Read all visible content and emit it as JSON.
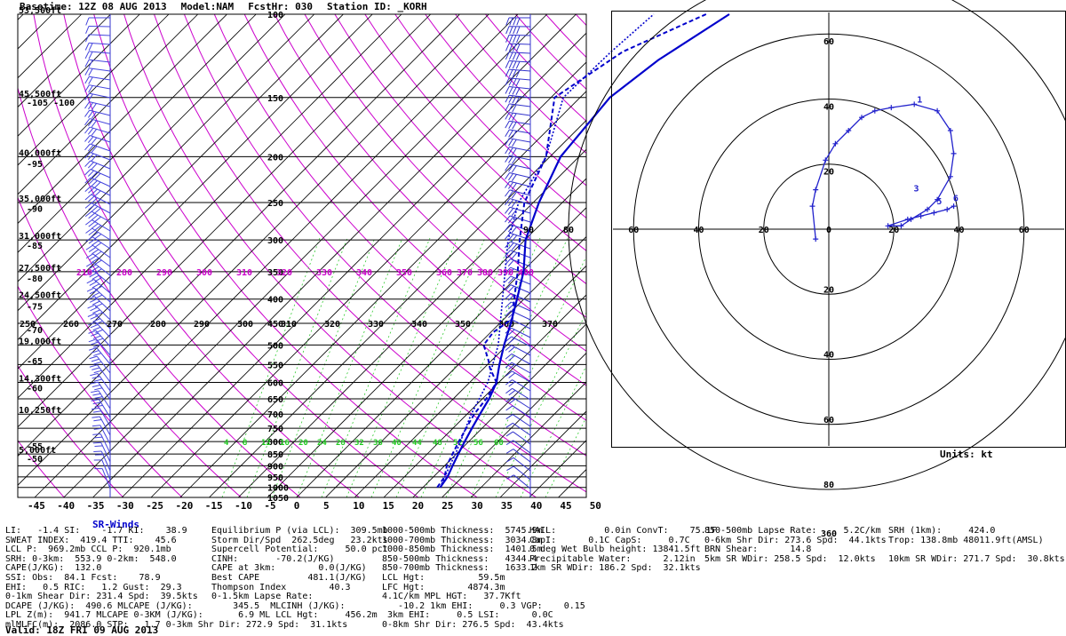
{
  "header": {
    "basetime": "Basetime: 12Z 08 AUG 2013",
    "model": "Model:NAM",
    "fcsthr": "FcstHr: 030",
    "station": "Station ID: _KORH"
  },
  "skewt": {
    "temp_ticks": [
      "-45",
      "-40",
      "-35",
      "-30",
      "-25",
      "-20",
      "-15",
      "-10",
      "-5",
      "0",
      "5",
      "10",
      "15",
      "20",
      "25",
      "30",
      "35",
      "40",
      "45",
      "50"
    ],
    "pressure_levels": [
      {
        "p": 100,
        "label": "100",
        "height": "53,500ft"
      },
      {
        "p": 150,
        "label": "150",
        "height": "45,500ft"
      },
      {
        "p": 200,
        "label": "200",
        "height": "40,000ft"
      },
      {
        "p": 250,
        "label": "250",
        "height": "35,000ft"
      },
      {
        "p": 300,
        "label": "300",
        "height": "31,000ft"
      },
      {
        "p": 350,
        "label": "350",
        "height": "27,500ft"
      },
      {
        "p": 400,
        "label": "400",
        "height": "24,500ft"
      },
      {
        "p": 450,
        "label": "450",
        "height": ""
      },
      {
        "p": 500,
        "label": "500",
        "height": "19,000ft"
      },
      {
        "p": 550,
        "label": "550",
        "height": ""
      },
      {
        "p": 600,
        "label": "600",
        "height": "14,300ft"
      },
      {
        "p": 650,
        "label": "650",
        "height": ""
      },
      {
        "p": 700,
        "label": "700",
        "height": "10,250ft"
      },
      {
        "p": 750,
        "label": "750",
        "height": ""
      },
      {
        "p": 800,
        "label": "800",
        "height": ""
      },
      {
        "p": 850,
        "label": "850",
        "height": "5,000ft"
      },
      {
        "p": 900,
        "label": "900",
        "height": ""
      },
      {
        "p": 950,
        "label": "950",
        "height": ""
      },
      {
        "p": 1000,
        "label": "1000",
        "height": ""
      },
      {
        "p": 1050,
        "label": "1050",
        "height": ""
      }
    ],
    "left_temp_labels": [
      {
        "p": 152,
        "label": "-105 -100"
      },
      {
        "p": 205,
        "label": "-95"
      },
      {
        "p": 255,
        "label": "-90"
      },
      {
        "p": 305,
        "label": "-85"
      },
      {
        "p": 358,
        "label": "-80"
      },
      {
        "p": 410,
        "label": "-75"
      },
      {
        "p": 460,
        "label": "-70"
      },
      {
        "p": 535,
        "label": "-65"
      },
      {
        "p": 610,
        "label": "-60"
      },
      {
        "p": 810,
        "label": "-55"
      },
      {
        "p": 860,
        "label": "-50"
      }
    ],
    "theta_row_350": [
      "210",
      "280",
      "290",
      "300",
      "310",
      "320",
      "330",
      "340",
      "350",
      "360",
      "370",
      "380",
      "390",
      "400"
    ],
    "theta_row_450": [
      "250",
      "260",
      "270",
      "280",
      "290",
      "300",
      "310",
      "320",
      "330",
      "340",
      "350",
      "360",
      "370"
    ],
    "green_row_800": [
      "4",
      "8",
      "12",
      "16",
      "20",
      "24",
      "28",
      "32",
      "36",
      "40",
      "44",
      "48",
      "52",
      "56",
      "60"
    ]
  },
  "chart_data": {
    "type": "line",
    "title": "",
    "series": [
      {
        "name": "",
        "kind": "temperature",
        "points": [
          [
            1000,
            23.0
          ],
          [
            950,
            22.5
          ],
          [
            900,
            21.5
          ],
          [
            850,
            20.5
          ],
          [
            800,
            19.5
          ],
          [
            750,
            18.5
          ],
          [
            700,
            17.5
          ],
          [
            650,
            16.5
          ],
          [
            600,
            15.0
          ],
          [
            550,
            12.5
          ],
          [
            500,
            10.0
          ],
          [
            450,
            7.5
          ],
          [
            400,
            4.5
          ],
          [
            350,
            1.0
          ],
          [
            300,
            -4.0
          ],
          [
            250,
            -8.0
          ],
          [
            200,
            -12.0
          ],
          [
            150,
            -13.5
          ],
          [
            125,
            -11.5
          ],
          [
            100,
            -7.0
          ]
        ]
      },
      {
        "name": "",
        "kind": "dewpoint",
        "points": [
          [
            1000,
            22.5
          ],
          [
            950,
            22.0
          ],
          [
            900,
            20.5
          ],
          [
            850,
            19.5
          ],
          [
            800,
            18.5
          ],
          [
            750,
            17.5
          ],
          [
            700,
            16.5
          ],
          [
            650,
            16.0
          ],
          [
            600,
            15.0
          ],
          [
            560,
            11.5
          ],
          [
            540,
            10.0
          ],
          [
            500,
            6.5
          ],
          [
            470,
            6.0
          ],
          [
            440,
            7.0
          ],
          [
            400,
            4.0
          ],
          [
            350,
            0.0
          ],
          [
            300,
            -5.0
          ],
          [
            250,
            -10.5
          ],
          [
            200,
            -14.5
          ],
          [
            150,
            -23.0
          ],
          [
            120,
            -19.0
          ],
          [
            100,
            -11.0
          ]
        ]
      },
      {
        "name": "",
        "kind": "parcel",
        "points": [
          [
            1000,
            23.0
          ],
          [
            900,
            21.0
          ],
          [
            850,
            20.0
          ],
          [
            700,
            16.0
          ],
          [
            600,
            13.5
          ],
          [
            500,
            9.0
          ],
          [
            400,
            2.0
          ],
          [
            300,
            -7.0
          ],
          [
            250,
            -11.5
          ],
          [
            200,
            -14.5
          ],
          [
            150,
            -21.5
          ],
          [
            120,
            -21.0
          ],
          [
            100,
            -20.0
          ]
        ]
      }
    ],
    "xlim": [
      -45,
      50
    ],
    "ylim": [
      1050,
      100
    ]
  },
  "hodograph": {
    "ring_speeds": [
      20,
      40,
      60,
      80
    ],
    "axis_labels_top": [
      "100",
      "80",
      "60",
      "40",
      "20"
    ],
    "axis_labels_bottom": [
      "20",
      "40",
      "60",
      "80",
      "360"
    ],
    "axis_labels_left": [
      "90",
      "80",
      "60",
      "40",
      "20",
      "0"
    ],
    "axis_labels_right": [
      "20",
      "40",
      "60",
      "80",
      "270"
    ],
    "trace": [
      [
        -4,
        -3
      ],
      [
        -5,
        7
      ],
      [
        -4,
        12
      ],
      [
        -1,
        21
      ],
      [
        2,
        26
      ],
      [
        6,
        30
      ],
      [
        10,
        34
      ],
      [
        14,
        36
      ],
      [
        19,
        37
      ],
      [
        26,
        38
      ],
      [
        33,
        36
      ],
      [
        37,
        30
      ],
      [
        38,
        23
      ],
      [
        37,
        16
      ],
      [
        33,
        9
      ],
      [
        30,
        6
      ],
      [
        25,
        3
      ],
      [
        22,
        1
      ],
      [
        18,
        1
      ],
      [
        24,
        3
      ],
      [
        28,
        4
      ],
      [
        32,
        5
      ],
      [
        36,
        6
      ],
      [
        38,
        7
      ]
    ],
    "height_marks": [
      {
        "km": "1",
        "u": 26,
        "v": 38
      },
      {
        "km": "3",
        "u": 25,
        "v": 11
      },
      {
        "km": "5",
        "u": 32,
        "v": 7
      },
      {
        "km": "6",
        "u": 37,
        "v": 8
      }
    ],
    "units_label": "Units: kt"
  },
  "bottom": {
    "sr_winds_label": "SR-Winds",
    "col1": "LI:   -1.4 SI:    -1.7 KI:    38.9\nSWEAT INDEX:  419.4 TTI:    45.6\nLCL P:  969.2mb CCL P:  920.1mb\nSRH: 0-3km:  553.9 0-2km:  548.0\nCAPE(J/KG):  132.0\nSSI: Obs:  84.1 Fcst:    78.9\nEHI:   0.5 RIC:   1.2 Gust:  29.3\n0-1km Shear Dir: 231.4 Spd:  39.5kts\nDCAPE (J/KG):  490.6 MLCAPE (J/KG):\nLPL Z(m):  941.7 MLCAPE 0-3KM (J/KG):\nmlMLFC(m):  2086.0 STP:   1.7 0-3km Shr Dir: 272.9 Spd:  31.1kts",
    "col2": "Equilibrium P (via LCL):  309.5mb\nStorm Dir/Spd  262.5deg   23.2kts\nSupercell Potential:     50.0 pct\nCINH:       -70.2(J/KG)\nCAPE at 3km:        0.0(J/KG)\nBest CAPE         481.1(J/KG)\nThompson Index        40.3\n0-1.5km Lapse Rate:\n    345.5  MLCINH (J/KG):\n     6.9 ML LCL Hgt:     456.2m\n",
    "col3": "1000-500mb Thickness:  5745.9m\n1000-700mb Thickness:  3034.8m\n1000-850mb Thickness:  1401.5m\n850-500mb Thickness:   4344.4\n850-700mb Thickness:   1633.2\nLCL Hgt:          59.5m\nLFC Hgt:        4874.3m\n4.1C/km MPL HGT:   37.7Kft\n   -10.2 1km EHI:     0.3 VGP:    0.15\n 3km EHI:     0.5 LSI:      0.0C\n0-8km Shr Dir: 276.5 Spd:  43.4kts",
    "col4": "HAIL:         0.0in ConvT:    75.1F\nCapI:      0.1C CapS:     0.7C\n0 deg Wet Bulb height: 13841.5ft\nPrecipitable Water:      2.12in\n1km SR WDir: 186.2 Spd:  32.1kts",
    "col5": "850-500mb Lapse Rate:     5.2C/km\n0-6km Shr Dir: 273.6 Spd:  44.1kts\nBRN Shear:      14.8\n5km SR WDir: 258.5 Spd:  12.0kts",
    "col6": "SRH (1km):     424.0\nTrop: 138.8mb 48011.9ft(AMSL)\n\n10km SR WDir: 271.7 Spd:  30.8kts",
    "valid": "Valid: 18Z FRI 09 AUG 2013"
  }
}
